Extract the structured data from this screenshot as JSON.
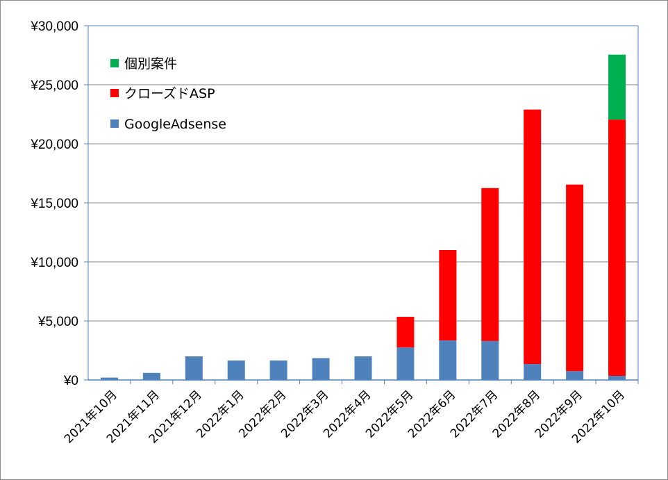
{
  "chart_data": {
    "type": "bar",
    "stacked": true,
    "categories": [
      "2021年10月",
      "2021年11月",
      "2021年12月",
      "2022年1月",
      "2022年2月",
      "2022年3月",
      "2022年4月",
      "2022年5月",
      "2022年6月",
      "2022年7月",
      "2022年8月",
      "2022年9月",
      "2022年10月"
    ],
    "series": [
      {
        "name": "GoogleAdsense",
        "color": "#4f81bd",
        "values": [
          200,
          600,
          2000,
          1650,
          1650,
          1850,
          2000,
          2750,
          3350,
          3300,
          1350,
          750,
          350
        ]
      },
      {
        "name": "クローズドASP",
        "color": "#ff0000",
        "values": [
          0,
          0,
          0,
          0,
          0,
          0,
          0,
          2600,
          7650,
          12950,
          21550,
          15800,
          21700
        ]
      },
      {
        "name": "個別案件",
        "color": "#00b050",
        "values": [
          0,
          0,
          0,
          0,
          0,
          0,
          0,
          0,
          0,
          0,
          0,
          0,
          5500
        ]
      }
    ],
    "y_ticks": [
      "¥0",
      "¥5,000",
      "¥10,000",
      "¥15,000",
      "¥20,000",
      "¥25,000",
      "¥30,000"
    ],
    "ylim": [
      0,
      30000
    ],
    "grid": true,
    "legend_position": "top-left",
    "legend_order": [
      "個別案件",
      "クローズドASP",
      "GoogleAdsense"
    ],
    "axis_color": "#4f81bd",
    "grid_color": "#868686"
  }
}
